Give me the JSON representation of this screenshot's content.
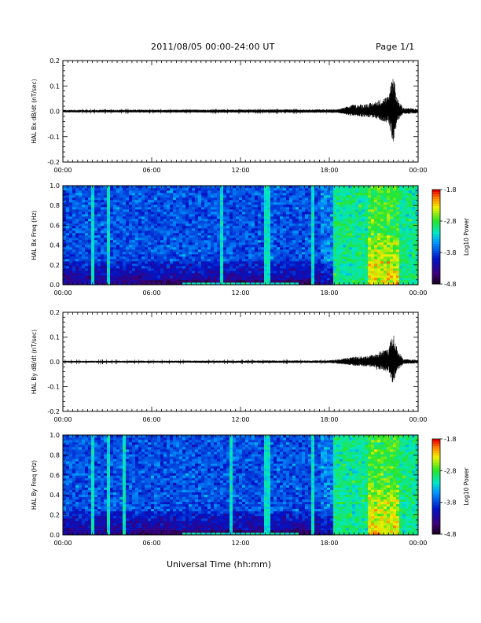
{
  "header": {
    "title": "2011/08/05  00:00-24:00 UT",
    "page": "Page 1/1"
  },
  "chart_data": [
    {
      "type": "line",
      "ylabel": "HAL Bx dB/dt (nT/sec)",
      "xlim": [
        0,
        24
      ],
      "ylim": [
        -0.2,
        0.2
      ],
      "yticks": [
        -0.2,
        -0.1,
        0.0,
        0.1,
        0.2
      ],
      "ytick_labels": [
        "-0.2",
        "-0.1",
        "0.0",
        "0.1",
        "0.2"
      ],
      "xticks": [
        0,
        6,
        12,
        18,
        24
      ],
      "xtick_labels": [
        "00:00",
        "06:00",
        "12:00",
        "18:00",
        "00:00"
      ],
      "envelope": {
        "hours": [
          0,
          18.5,
          19.0,
          19.5,
          20.5,
          21.0,
          21.5,
          22.0,
          22.3,
          22.6,
          23.0,
          24.0
        ],
        "amplitude": [
          0.006,
          0.008,
          0.015,
          0.025,
          0.03,
          0.035,
          0.05,
          0.06,
          0.17,
          0.05,
          0.015,
          0.01
        ]
      }
    },
    {
      "type": "heatmap",
      "ylabel": "HAL Bx Freq (Hz)",
      "xlim": [
        0,
        24
      ],
      "ylim": [
        0,
        1.0
      ],
      "yticks": [
        0.0,
        0.2,
        0.4,
        0.6,
        0.8,
        1.0
      ],
      "ytick_labels": [
        "0.0",
        "0.2",
        "0.4",
        "0.6",
        "0.8",
        "1.0"
      ],
      "xticks": [
        0,
        6,
        12,
        18,
        24
      ],
      "xtick_labels": [
        "00:00",
        "06:00",
        "12:00",
        "18:00",
        "00:00"
      ],
      "colorbar": {
        "label": "Log10 Power",
        "range": [
          -4.8,
          -1.8
        ],
        "tick_labels": [
          "-1.8",
          "-2.8",
          "-3.8",
          "-4.8"
        ]
      },
      "spike_hours": [
        1.95,
        3.1,
        10.8,
        13.8,
        16.9
      ],
      "active_interval_hours": [
        18.2,
        24.0
      ]
    },
    {
      "type": "line",
      "ylabel": "HAL By dB/dt (nT/sec)",
      "xlim": [
        0,
        24
      ],
      "ylim": [
        -0.2,
        0.2
      ],
      "yticks": [
        -0.2,
        -0.1,
        0.0,
        0.1,
        0.2
      ],
      "ytick_labels": [
        "-0.2",
        "-0.1",
        "0.0",
        "0.1",
        "0.2"
      ],
      "xticks": [
        0,
        6,
        12,
        18,
        24
      ],
      "xtick_labels": [
        "00:00",
        "06:00",
        "12:00",
        "18:00",
        "00:00"
      ],
      "envelope": {
        "hours": [
          0,
          18.0,
          18.8,
          19.5,
          20.5,
          21.0,
          21.5,
          22.0,
          22.3,
          22.6,
          23.0,
          24.0
        ],
        "amplitude": [
          0.004,
          0.006,
          0.012,
          0.02,
          0.025,
          0.03,
          0.045,
          0.055,
          0.12,
          0.05,
          0.012,
          0.008
        ]
      }
    },
    {
      "type": "heatmap",
      "ylabel": "HAL By Freq (Hz)",
      "xlabel": "Universal Time (hh:mm)",
      "xlim": [
        0,
        24
      ],
      "ylim": [
        0,
        1.0
      ],
      "yticks": [
        0.0,
        0.2,
        0.4,
        0.6,
        0.8,
        1.0
      ],
      "ytick_labels": [
        "0.0",
        "0.2",
        "0.4",
        "0.6",
        "0.8",
        "1.0"
      ],
      "xticks": [
        0,
        6,
        12,
        18,
        24
      ],
      "xtick_labels": [
        "00:00",
        "06:00",
        "12:00",
        "18:00",
        "00:00"
      ],
      "colorbar": {
        "label": "Log10 Power",
        "range": [
          -4.8,
          -1.8
        ],
        "tick_labels": [
          "-1.8",
          "-2.8",
          "-3.8",
          "-4.8"
        ]
      },
      "spike_hours": [
        1.95,
        3.1,
        4.2,
        11.3,
        13.8,
        16.9
      ],
      "active_interval_hours": [
        18.2,
        24.0
      ]
    }
  ]
}
